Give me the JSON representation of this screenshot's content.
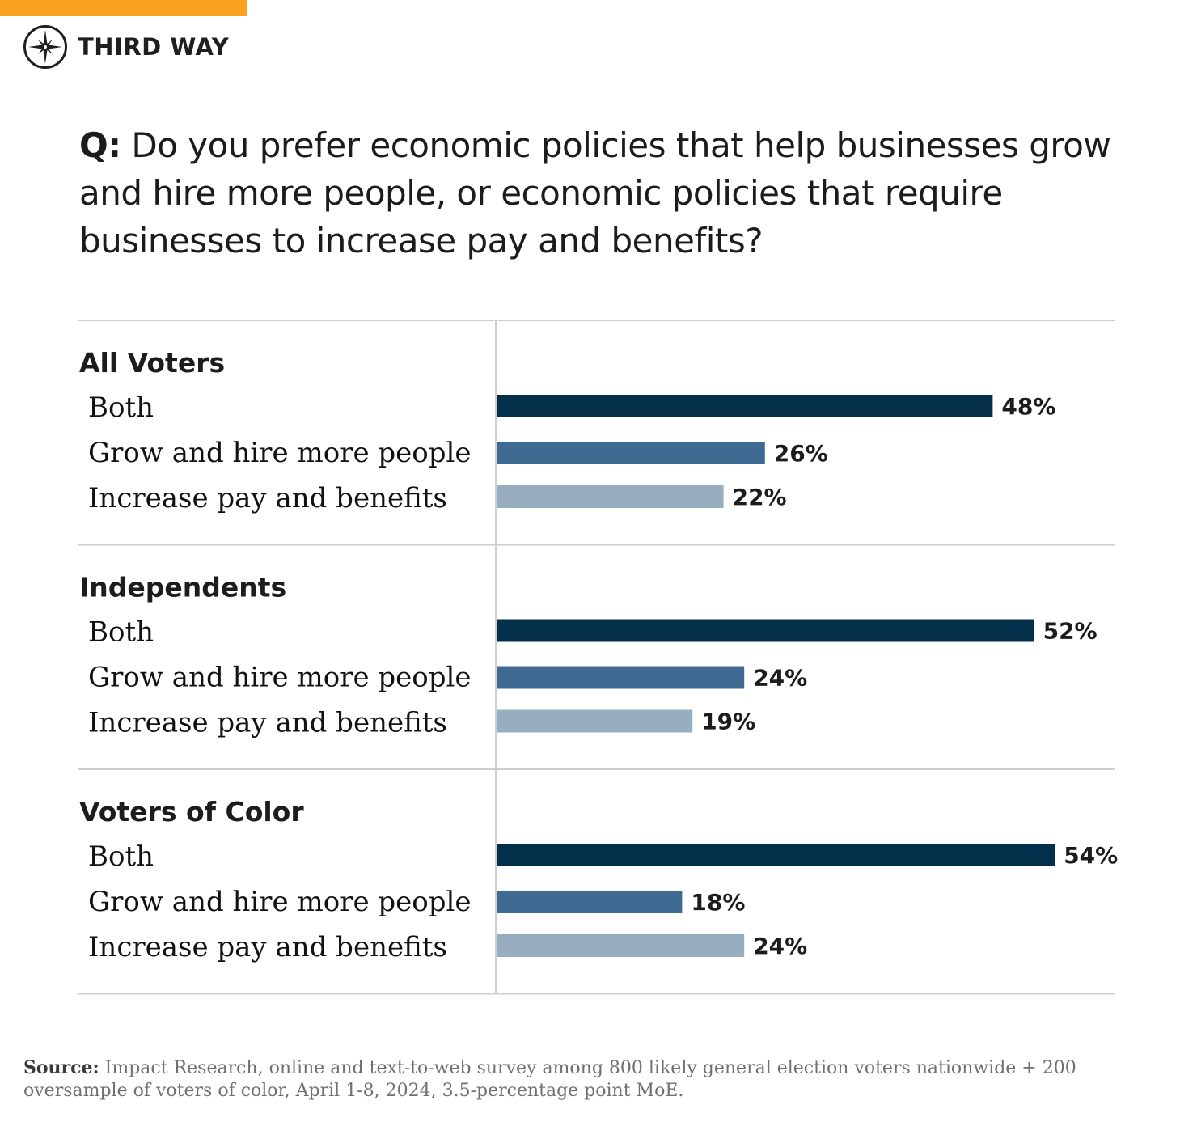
{
  "brand": {
    "name": "THIRD WAY",
    "accent_color": "#f8a21e",
    "logo_icon": "compass-star-icon"
  },
  "question": {
    "prefix": "Q:",
    "text": "Do you prefer economic policies that help businesses grow and hire more people, or economic policies that require businesses to increase pay and benefits?"
  },
  "chart_data": {
    "type": "bar",
    "orientation": "horizontal",
    "unit": "%",
    "xlim": [
      0,
      60
    ],
    "grid": false,
    "colors": {
      "Both": "#04304c",
      "Grow and hire more people": "#3f6a91",
      "Increase pay and benefits": "#97aec0"
    },
    "groups": [
      {
        "name": "All Voters",
        "bars": [
          {
            "label": "Both",
            "value": 48,
            "value_label": "48%"
          },
          {
            "label": "Grow and hire more people",
            "value": 26,
            "value_label": "26%"
          },
          {
            "label": "Increase pay and benefits",
            "value": 22,
            "value_label": "22%"
          }
        ]
      },
      {
        "name": "Independents",
        "bars": [
          {
            "label": "Both",
            "value": 52,
            "value_label": "52%"
          },
          {
            "label": "Grow and hire more people",
            "value": 24,
            "value_label": "24%"
          },
          {
            "label": "Increase pay and benefits",
            "value": 19,
            "value_label": "19%"
          }
        ]
      },
      {
        "name": "Voters of Color",
        "bars": [
          {
            "label": "Both",
            "value": 54,
            "value_label": "54%"
          },
          {
            "label": "Grow and hire more people",
            "value": 18,
            "value_label": "18%"
          },
          {
            "label": "Increase pay and benefits",
            "value": 24,
            "value_label": "24%"
          }
        ]
      }
    ]
  },
  "source": {
    "label": "Source:",
    "text": "Impact Research, online and text-to-web survey among 800 likely general election voters nationwide + 200 oversample of voters of color, April 1-8, 2024, 3.5-percentage point MoE."
  }
}
